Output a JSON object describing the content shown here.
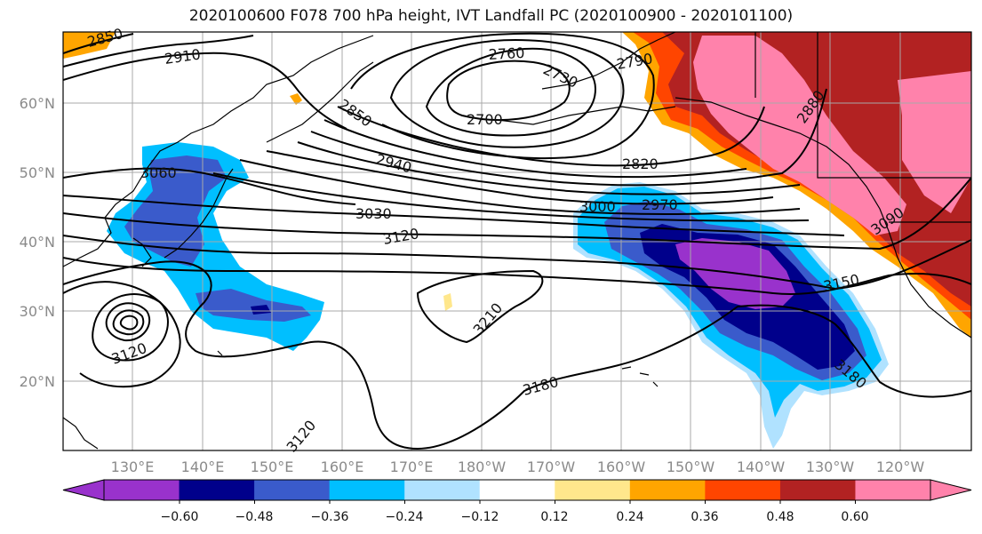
{
  "title": "2020100600 F078 700 hPa height, IVT Landfall PC (2020100900 - 2020101100)",
  "lat_labels": [
    "60°N",
    "50°N",
    "40°N",
    "30°N",
    "20°N"
  ],
  "lon_labels": [
    "130°E",
    "140°E",
    "150°E",
    "160°E",
    "170°E",
    "180°W",
    "170°W",
    "160°W",
    "150°W",
    "140°W",
    "130°W",
    "120°W"
  ],
  "contour_labels": [
    "2850",
    "2910",
    "2760",
    "2730",
    "2790",
    "2700",
    "2850",
    "2880",
    "3060",
    "2940",
    "2820",
    "3030",
    "3000",
    "2970",
    "3120",
    "3090",
    "3150",
    "3210",
    "3120",
    "3180",
    "3180",
    "3120"
  ],
  "colorbar": {
    "tick_labels": [
      "−0.60",
      "−0.48",
      "−0.36",
      "−0.24",
      "−0.12",
      "0.12",
      "0.24",
      "0.36",
      "0.48",
      "0.60"
    ],
    "colors": [
      "#9932cc",
      "#00008b",
      "#3a5bcb",
      "#00bfff",
      "#b0e2ff",
      "#ffffff",
      "#ffe78c",
      "#ffa500",
      "#ff4500",
      "#b22222",
      "#ff82ab"
    ]
  }
}
